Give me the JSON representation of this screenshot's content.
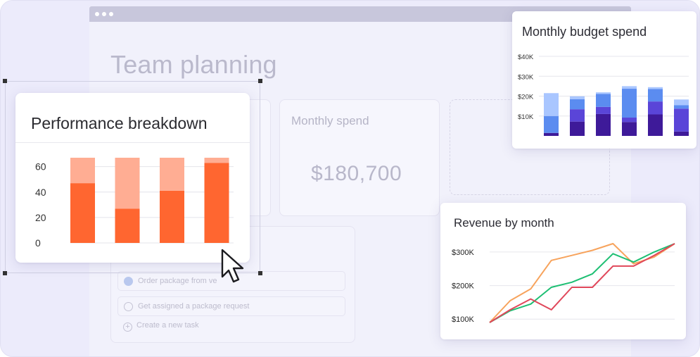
{
  "page": {
    "title": "Team planning",
    "monthly_spend": {
      "label": "Monthly spend",
      "value": "$180,700"
    },
    "tasks": [
      {
        "label": "Order package from ve",
        "done": true
      },
      {
        "label": "Get assigned a package request",
        "done": false
      }
    ],
    "create_task_label": "Create a new task"
  },
  "colors": {
    "orange_dark": "#ff6630",
    "orange_light": "#ffad93",
    "navy": "#3e1a99",
    "indigo": "#5a45d8",
    "blue": "#5b8cf0",
    "light_blue": "#a9c6ff",
    "revenue_orange": "#f7a35c",
    "revenue_green": "#1dbf73",
    "revenue_red": "#e0475a"
  },
  "chart_data": [
    {
      "type": "bar",
      "title": "Performance breakdown",
      "stacked": true,
      "categories": [
        "",
        "",
        "",
        ""
      ],
      "series": [
        {
          "values": [
            47,
            27,
            41,
            63
          ]
        },
        {
          "values": [
            20,
            40,
            26,
            4
          ]
        }
      ],
      "yticks": [
        "0",
        "20",
        "40",
        "60"
      ],
      "ylim": [
        0,
        67
      ],
      "grid": true
    },
    {
      "type": "bar",
      "title": "Monthly budget spend",
      "stacked": true,
      "categories": [
        "",
        "",
        "",
        "",
        "",
        ""
      ],
      "series": [
        {
          "values": [
            1.5,
            7.2,
            11.0,
            7.0,
            10.8,
            2.2
          ]
        },
        {
          "values": [
            0.0,
            6.2,
            3.6,
            2.2,
            6.5,
            11.5
          ]
        },
        {
          "values": [
            8.5,
            5.0,
            6.5,
            14.5,
            6.3,
            1.7
          ]
        },
        {
          "values": [
            11.5,
            1.5,
            0.8,
            1.3,
            0.9,
            2.9
          ]
        }
      ],
      "yticks": [
        "$10K",
        "$20K",
        "$30K",
        "$40K"
      ],
      "ylim": [
        0,
        40
      ],
      "grid": true
    },
    {
      "type": "line",
      "title": "Revenue by month",
      "x": [
        0,
        1,
        2,
        3,
        4,
        5,
        6,
        7,
        8,
        9
      ],
      "series": [
        {
          "values": [
            90,
            155,
            190,
            275,
            290,
            305,
            325,
            265,
            285,
            325
          ]
        },
        {
          "values": [
            90,
            125,
            145,
            195,
            210,
            235,
            295,
            270,
            300,
            325
          ]
        },
        {
          "values": [
            90,
            128,
            160,
            128,
            195,
            195,
            258,
            258,
            290,
            325
          ]
        }
      ],
      "yticks": [
        "$100K",
        "$200K",
        "$300K"
      ],
      "ylim": [
        90,
        325
      ],
      "grid": true
    }
  ]
}
